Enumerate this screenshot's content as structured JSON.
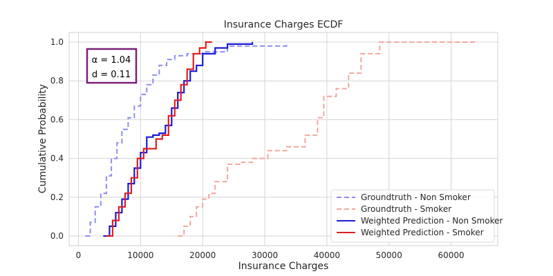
{
  "chart_data": {
    "type": "line",
    "subtype": "ecdf-step",
    "title": "Insurance Charges ECDF",
    "xlabel": "Insurance Charges",
    "ylabel": "Cumulative Probability",
    "xlim": [
      -1500,
      67500
    ],
    "ylim": [
      -0.05,
      1.05
    ],
    "x_ticks": [
      0,
      10000,
      20000,
      30000,
      40000,
      50000,
      60000
    ],
    "x_tick_labels": [
      "0",
      "10000",
      "20000",
      "30000",
      "40000",
      "50000",
      "60000"
    ],
    "y_ticks": [
      0.0,
      0.2,
      0.4,
      0.6,
      0.8,
      1.0
    ],
    "y_tick_labels": [
      "0.0",
      "0.2",
      "0.4",
      "0.6",
      "0.8",
      "1.0"
    ],
    "grid": true,
    "legend_position": "lower-right",
    "annotation": {
      "lines": [
        "α = 1.04",
        "d = 0.11"
      ],
      "border_color": "#7b1e7a"
    },
    "series": [
      {
        "name": "Groundtruth - Non Smoker",
        "color": "#8c8cf2",
        "style": "dashed",
        "x": [
          1100,
          1900,
          2700,
          3600,
          4500,
          5300,
          6200,
          7000,
          8000,
          9000,
          10000,
          11000,
          12000,
          13000,
          14200,
          15500,
          17500,
          20000,
          24000,
          33500
        ],
        "y": [
          0.0,
          0.07,
          0.15,
          0.22,
          0.31,
          0.4,
          0.48,
          0.55,
          0.61,
          0.67,
          0.73,
          0.78,
          0.83,
          0.88,
          0.91,
          0.93,
          0.94,
          0.95,
          0.98,
          1.0
        ]
      },
      {
        "name": "Groundtruth - Smoker",
        "color": "#f2a69e",
        "style": "dashed",
        "x": [
          16000,
          17000,
          18000,
          19000,
          20000,
          21000,
          22000,
          24000,
          26000,
          28000,
          30500,
          33500,
          36500,
          38500,
          39500,
          41500,
          43500,
          45500,
          48500,
          64000
        ],
        "y": [
          0.0,
          0.05,
          0.1,
          0.15,
          0.19,
          0.22,
          0.28,
          0.37,
          0.38,
          0.4,
          0.44,
          0.46,
          0.52,
          0.61,
          0.72,
          0.76,
          0.84,
          0.94,
          1.0,
          1.0
        ]
      },
      {
        "name": "Weighted Prediction - Non Smoker",
        "color": "#1a1ad9",
        "style": "solid",
        "x": [
          4000,
          5000,
          6000,
          7000,
          8000,
          9000,
          10000,
          11000,
          12000,
          13000,
          14000,
          15000,
          16000,
          17000,
          18000,
          19000,
          20000,
          22000,
          24000,
          28000
        ],
        "y": [
          0.0,
          0.05,
          0.12,
          0.19,
          0.27,
          0.35,
          0.43,
          0.51,
          0.52,
          0.53,
          0.57,
          0.66,
          0.74,
          0.8,
          0.85,
          0.88,
          0.94,
          0.97,
          0.99,
          1.0
        ]
      },
      {
        "name": "Weighted Prediction - Smoker",
        "color": "#e01f1f",
        "style": "solid",
        "x": [
          4500,
          5500,
          6500,
          7500,
          8500,
          9500,
          10500,
          12500,
          13500,
          14500,
          15500,
          16500,
          17500,
          18500,
          19500,
          20500,
          21500
        ],
        "y": [
          0.0,
          0.08,
          0.15,
          0.22,
          0.3,
          0.4,
          0.45,
          0.5,
          0.52,
          0.62,
          0.7,
          0.78,
          0.86,
          0.94,
          0.97,
          1.0,
          1.0
        ]
      }
    ]
  }
}
